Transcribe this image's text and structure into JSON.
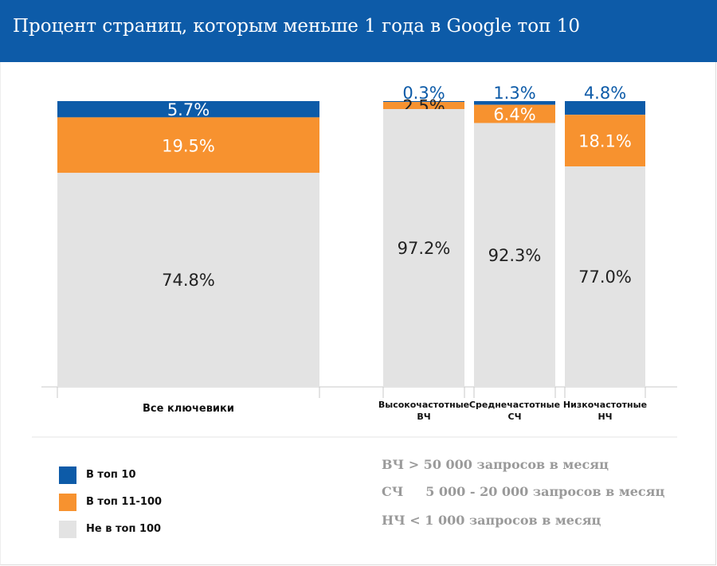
{
  "title": "Процент страниц, которым меньше 1 года в Google топ 10",
  "colors": {
    "header": "#0d5ba8",
    "top10": "#0d5ba8",
    "top11_100": "#f7922f",
    "not_top100": "#e3e3e3"
  },
  "chart_data": {
    "type": "bar",
    "stacked": true,
    "normalized": true,
    "categories": [
      "Все ключевики",
      "Высокочастотные ВЧ",
      "Среднечастотные СЧ",
      "Низкочастотные НЧ"
    ],
    "category_labels": [
      [
        "Все ключевики"
      ],
      [
        "Высокочастотные",
        "ВЧ"
      ],
      [
        "Среднечастотные",
        "СЧ"
      ],
      [
        "Низкочастотные",
        "НЧ"
      ]
    ],
    "series": [
      {
        "name": "Не в топ 100",
        "values": [
          74.8,
          97.2,
          92.3,
          77.0
        ],
        "labels": [
          "74.8%",
          "97.2%",
          "92.3%",
          "77.0%"
        ]
      },
      {
        "name": "В топ 11-100",
        "values": [
          19.5,
          2.5,
          6.4,
          18.1
        ],
        "labels": [
          "19.5%",
          "2.5%",
          "6.4%",
          "18.1%"
        ]
      },
      {
        "name": "В топ 10",
        "values": [
          5.7,
          0.3,
          1.3,
          4.8
        ],
        "labels": [
          "5.7%",
          "0.3%",
          "1.3%",
          "4.8%"
        ]
      }
    ],
    "ylim": [
      0,
      100
    ],
    "grid": false,
    "legend_position": "bottom-left"
  },
  "legend": [
    {
      "label": "В топ 10",
      "color": "#0d5ba8"
    },
    {
      "label": "В топ 11-100",
      "color": "#f7922f"
    },
    {
      "label": "Не в топ 100",
      "color": "#e3e3e3"
    }
  ],
  "notes": [
    "ВЧ > 50 000 запросов в месяц",
    "СЧ     5 000 - 20 000 запросов в месяц",
    "НЧ < 1 000 запросов в месяц"
  ]
}
